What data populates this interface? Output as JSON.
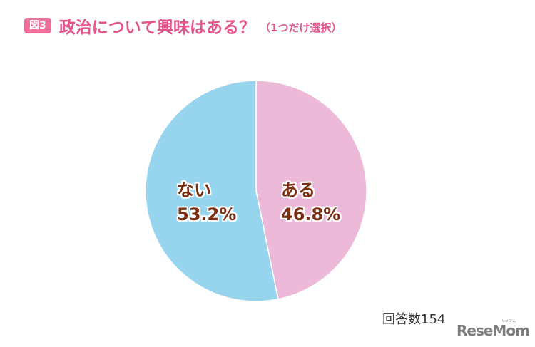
{
  "header": {
    "badge": "図3",
    "title": "政治について興味はある？",
    "subtitle": "（1つだけ選択）"
  },
  "chart_data": {
    "type": "pie",
    "title": "政治について興味はある？（1つだけ選択）",
    "categories": [
      "ある",
      "ない"
    ],
    "values": [
      46.8,
      53.2
    ],
    "unit": "%",
    "colors": [
      "#ecbad8",
      "#97d5ee"
    ],
    "start_angle_deg": 0,
    "direction": "clockwise",
    "labels": [
      {
        "name": "ある",
        "value_text": "46.8%"
      },
      {
        "name": "ない",
        "value_text": "53.2%"
      }
    ],
    "legend": "none",
    "note": "回答数154"
  },
  "footer": {
    "responses": "回答数154",
    "logo": "ReseMom",
    "logo_ruby": "リセマム"
  },
  "colors": {
    "accent": "#e4548a",
    "badge_bg": "#ec6f9c",
    "label_text": "#7a2e12"
  }
}
